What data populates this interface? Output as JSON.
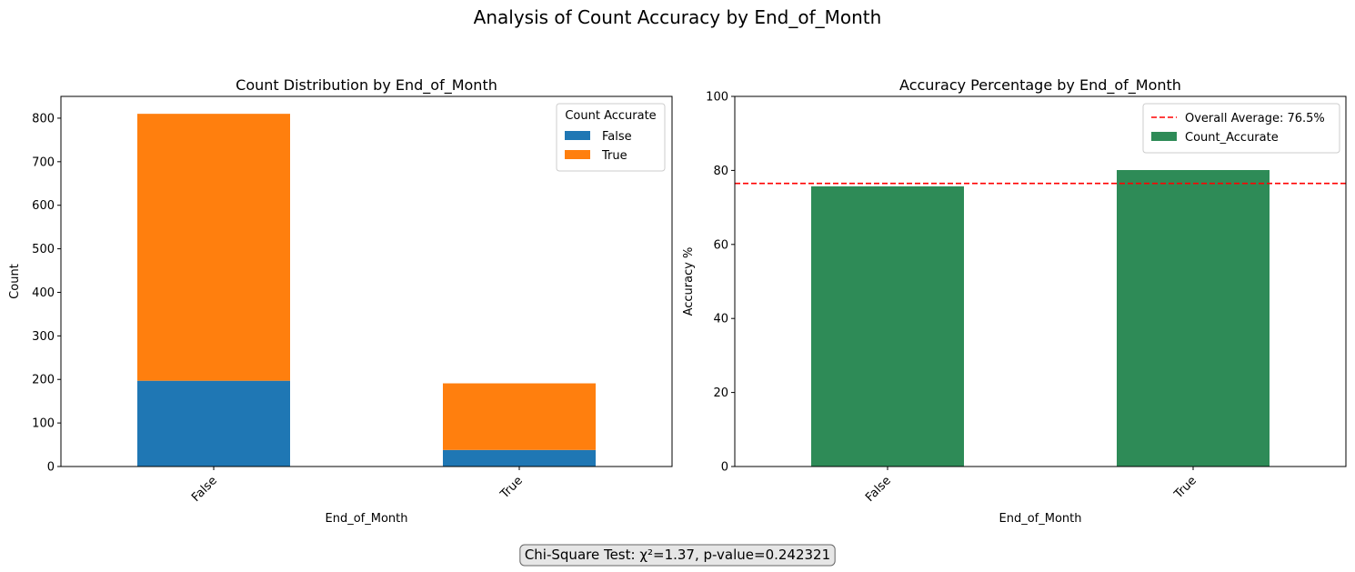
{
  "figure": {
    "suptitle": "Analysis of Count Accuracy by End_of_Month",
    "annotation": "Chi-Square Test: χ²=1.37, p-value=0.242321"
  },
  "colors": {
    "false_series": "#1f77b4",
    "true_series": "#ff7f0e",
    "accuracy_bar": "#2e8b57",
    "average_line": "#ff0000"
  },
  "chart_data": [
    {
      "type": "bar",
      "stacked": true,
      "title": "Count Distribution by End_of_Month",
      "xlabel": "End_of_Month",
      "ylabel": "Count",
      "categories": [
        "False",
        "True"
      ],
      "ylim": [
        0,
        850
      ],
      "yticks": [
        0,
        100,
        200,
        300,
        400,
        500,
        600,
        700,
        800
      ],
      "legend": {
        "title": "Count Accurate",
        "placement": "top-right"
      },
      "series": [
        {
          "name": "False",
          "values": [
            197,
            38
          ]
        },
        {
          "name": "True",
          "values": [
            613,
            153
          ]
        }
      ],
      "grid": false
    },
    {
      "type": "bar",
      "title": "Accuracy Percentage by End_of_Month",
      "xlabel": "End_of_Month",
      "ylabel": "Accuracy %",
      "categories": [
        "False",
        "True"
      ],
      "ylim": [
        0,
        100
      ],
      "yticks": [
        0,
        20,
        40,
        60,
        80,
        100
      ],
      "series": [
        {
          "name": "Count_Accurate",
          "values": [
            75.7,
            80.1
          ]
        }
      ],
      "reference_line": {
        "label": "Overall Average: 76.5%",
        "value": 76.5,
        "style": "dashed"
      },
      "legend": {
        "placement": "top-right"
      },
      "grid": false
    }
  ]
}
